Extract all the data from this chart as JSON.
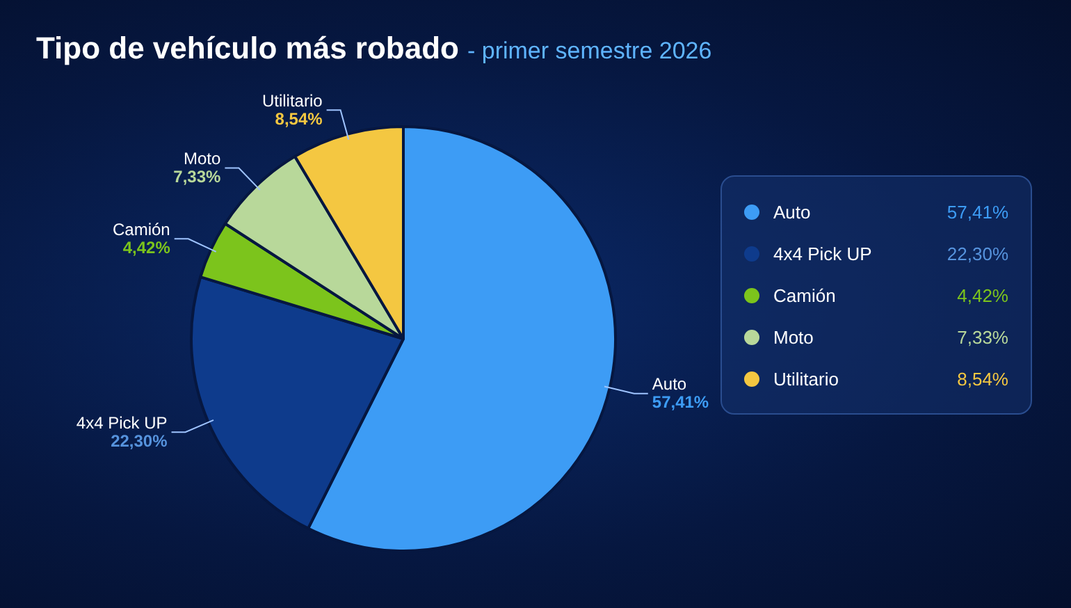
{
  "chart_data": {
    "type": "pie",
    "title": "Tipo de vehículo más robado",
    "subtitle": "- primer semestre 2026",
    "categories": [
      "Auto",
      "4x4 Pick UP",
      "Camión",
      "Moto",
      "Utilitario"
    ],
    "values": [
      57.41,
      22.3,
      4.42,
      7.33,
      8.54
    ],
    "value_labels": [
      "57,41%",
      "22,30%",
      "4,42%",
      "7,33%",
      "8,54%"
    ],
    "colors": [
      "#3d9cf5",
      "#0e3b8c",
      "#7cc41c",
      "#b8d89a",
      "#f4c741"
    ],
    "legend": "right"
  }
}
